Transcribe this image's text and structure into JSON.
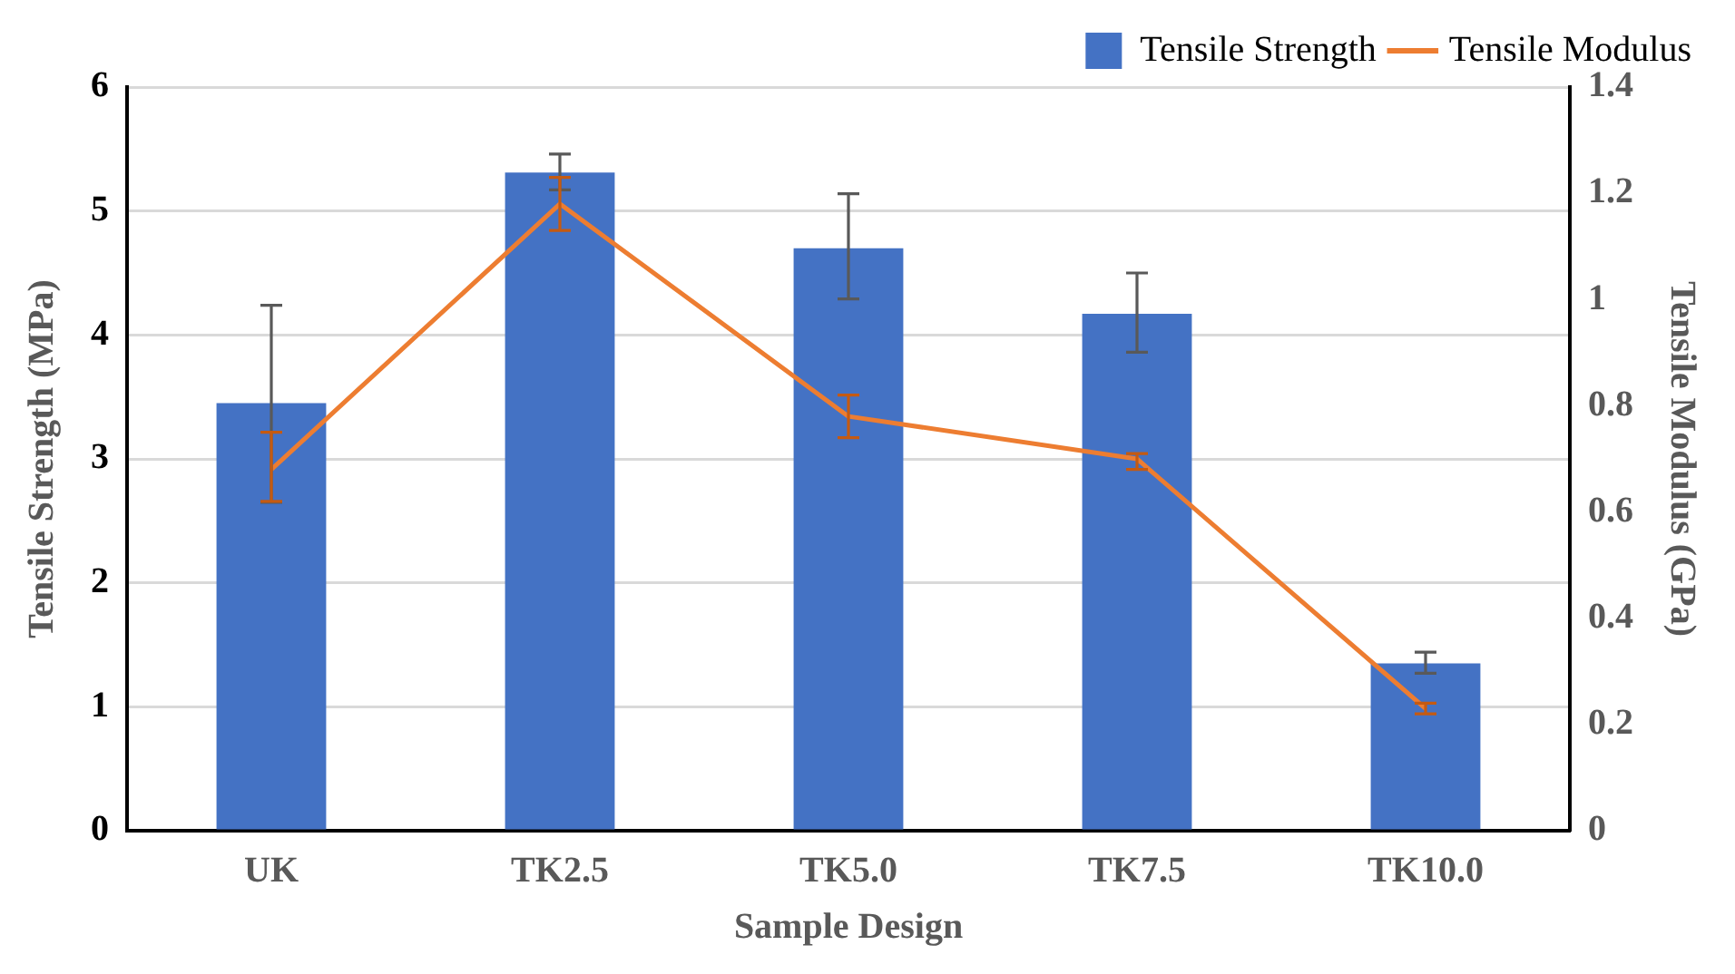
{
  "chart_data": {
    "type": "bar",
    "xlabel": "Sample Design",
    "ylabel": "Tensile Strength (MPa)",
    "y2label": "Tensile Modulus (GPa)",
    "categories": [
      "UK",
      "TK2.5",
      "TK5.0",
      "TK7.5",
      "TK10.0"
    ],
    "series": [
      {
        "name": "Tensile Strength",
        "color": "#4472c4",
        "values": [
          3.45,
          5.31,
          4.7,
          4.17,
          1.35
        ],
        "errors": [
          [
            2.65,
            4.24
          ],
          [
            5.17,
            5.46
          ],
          [
            4.29,
            5.14
          ],
          [
            3.86,
            4.5
          ],
          [
            1.27,
            1.44
          ]
        ]
      },
      {
        "name": "Tensile Modulus",
        "type": "line",
        "axis": "y2",
        "color": "#ed7d31",
        "marker": "none",
        "line_style": "solid",
        "values": [
          0.68,
          1.18,
          0.78,
          0.7,
          0.23
        ],
        "errors": [
          [
            0.62,
            0.75
          ],
          [
            1.13,
            1.23
          ],
          [
            0.74,
            0.82
          ],
          [
            0.68,
            0.71
          ],
          [
            0.22,
            0.24
          ]
        ]
      }
    ],
    "ylim": [
      0,
      6
    ],
    "yticks": [
      0,
      1,
      2,
      3,
      4,
      5,
      6
    ],
    "y2lim": [
      0,
      1.4
    ],
    "y2ticks": [
      0,
      0.2,
      0.4,
      0.6,
      0.8,
      1,
      1.2,
      1.4
    ],
    "grid": "y",
    "legend": "top right"
  }
}
